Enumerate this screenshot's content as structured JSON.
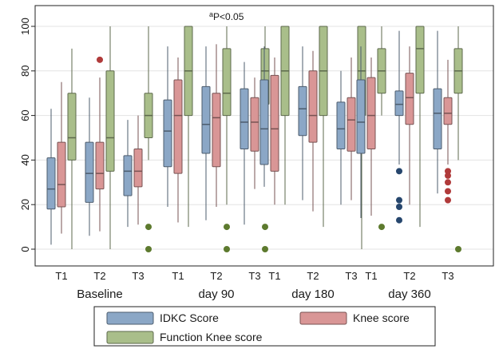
{
  "chart_data": {
    "type": "boxplot",
    "ylim": [
      0,
      100
    ],
    "yticks": [
      0,
      20,
      40,
      60,
      80,
      100
    ],
    "grid": true,
    "legend_position": "bottom",
    "annotation": {
      "sup": "a",
      "text": "P<0.05"
    },
    "colors": {
      "IDKC Score": "#8ba7c6",
      "Knee score": "#d99696",
      "Function Knee score": "#a9be8a"
    },
    "groups": [
      {
        "label": "Baseline",
        "timepoints": [
          {
            "label": "T1",
            "boxes": [
              {
                "series": "IDKC Score",
                "whisker_low": 2,
                "q1": 18,
                "median": 27,
                "q3": 41,
                "whisker_high": 63,
                "outliers": []
              },
              {
                "series": "Knee score",
                "whisker_low": 7,
                "q1": 19,
                "median": 29,
                "q3": 48,
                "whisker_high": 75,
                "outliers": []
              },
              {
                "series": "Function Knee score",
                "whisker_low": 0,
                "q1": 40,
                "median": 50,
                "q3": 70,
                "whisker_high": 90,
                "outliers": []
              }
            ]
          },
          {
            "label": "T2",
            "boxes": [
              {
                "series": "IDKC Score",
                "whisker_low": 6,
                "q1": 21,
                "median": 34,
                "q3": 48,
                "whisker_high": 68,
                "outliers": []
              },
              {
                "series": "Knee score",
                "whisker_low": 8,
                "q1": 27,
                "median": 34,
                "q3": 48,
                "whisker_high": 77,
                "outliers": [
                  85
                ]
              },
              {
                "series": "Function Knee score",
                "whisker_low": 0,
                "q1": 35,
                "median": 50,
                "q3": 80,
                "whisker_high": 100,
                "outliers": []
              }
            ]
          },
          {
            "label": "T3",
            "boxes": [
              {
                "series": "IDKC Score",
                "whisker_low": 10,
                "q1": 24,
                "median": 35,
                "q3": 42,
                "whisker_high": 58,
                "outliers": []
              },
              {
                "series": "Knee score",
                "whisker_low": 11,
                "q1": 28,
                "median": 35,
                "q3": 45,
                "whisker_high": 60,
                "outliers": []
              },
              {
                "series": "Function Knee score",
                "whisker_low": 40,
                "q1": 50,
                "median": 60,
                "q3": 70,
                "whisker_high": 100,
                "outliers": [
                  10,
                  0
                ]
              }
            ]
          }
        ]
      },
      {
        "label": "day 90",
        "timepoints": [
          {
            "label": "T1",
            "boxes": [
              {
                "series": "IDKC Score",
                "whisker_low": 19,
                "q1": 37,
                "median": 53,
                "q3": 67,
                "whisker_high": 91,
                "outliers": []
              },
              {
                "series": "Knee score",
                "whisker_low": 12,
                "q1": 34,
                "median": 60,
                "q3": 76,
                "whisker_high": 86,
                "outliers": []
              },
              {
                "series": "Function Knee score",
                "whisker_low": 10,
                "q1": 60,
                "median": 80,
                "q3": 100,
                "whisker_high": 100,
                "outliers": []
              }
            ]
          },
          {
            "label": "T2",
            "boxes": [
              {
                "series": "IDKC Score",
                "whisker_low": 13,
                "q1": 43,
                "median": 56,
                "q3": 73,
                "whisker_high": 91,
                "outliers": []
              },
              {
                "series": "Knee score",
                "whisker_low": 19,
                "q1": 37,
                "median": 59,
                "q3": 70,
                "whisker_high": 92,
                "outliers": []
              },
              {
                "series": "Function Knee score",
                "whisker_low": 20,
                "q1": 60,
                "median": 70,
                "q3": 90,
                "whisker_high": 100,
                "outliers": [
                  10,
                  0
                ]
              }
            ]
          },
          {
            "label": "T3",
            "boxes": [
              {
                "series": "IDKC Score",
                "whisker_low": 11,
                "q1": 45,
                "median": 57,
                "q3": 72,
                "whisker_high": 84,
                "outliers": []
              },
              {
                "series": "Knee score",
                "whisker_low": 27,
                "q1": 44,
                "median": 57,
                "q3": 68,
                "whisker_high": 77,
                "outliers": []
              },
              {
                "series": "Function Knee score",
                "whisker_low": 40,
                "q1": 65,
                "median": 80,
                "q3": 90,
                "whisker_high": 100,
                "outliers": [
                  10,
                  0
                ]
              }
            ]
          }
        ]
      },
      {
        "label": "day 180",
        "timepoints": [
          {
            "label": "T1",
            "boxes": [
              {
                "series": "IDKC Score",
                "whisker_low": 28,
                "q1": 38,
                "median": 54,
                "q3": 76,
                "whisker_high": 91,
                "outliers": []
              },
              {
                "series": "Knee score",
                "whisker_low": 20,
                "q1": 35,
                "median": 54,
                "q3": 78,
                "whisker_high": 86,
                "outliers": []
              },
              {
                "series": "Function Knee score",
                "whisker_low": 20,
                "q1": 60,
                "median": 80,
                "q3": 100,
                "whisker_high": 100,
                "outliers": []
              }
            ]
          },
          {
            "label": "T2",
            "boxes": [
              {
                "series": "IDKC Score",
                "whisker_low": 22,
                "q1": 51,
                "median": 63,
                "q3": 73,
                "whisker_high": 91,
                "outliers": []
              },
              {
                "series": "Knee score",
                "whisker_low": 17,
                "q1": 48,
                "median": 60,
                "q3": 80,
                "whisker_high": 89,
                "outliers": []
              },
              {
                "series": "Function Knee score",
                "whisker_low": 10,
                "q1": 60,
                "median": 80,
                "q3": 100,
                "whisker_high": 100,
                "outliers": []
              }
            ]
          },
          {
            "label": "T3",
            "boxes": [
              {
                "series": "IDKC Score",
                "whisker_low": 20,
                "q1": 45,
                "median": 54,
                "q3": 66,
                "whisker_high": 80,
                "outliers": []
              },
              {
                "series": "Knee score",
                "whisker_low": 22,
                "q1": 44,
                "median": 58,
                "q3": 68,
                "whisker_high": 86,
                "outliers": []
              },
              {
                "series": "Function Knee score",
                "whisker_low": 0,
                "q1": 60,
                "median": 80,
                "q3": 100,
                "whisker_high": 100,
                "outliers": []
              }
            ]
          }
        ]
      },
      {
        "label": "day 360",
        "timepoints": [
          {
            "label": "T1",
            "boxes": [
              {
                "series": "IDKC Score",
                "whisker_low": 14,
                "q1": 43,
                "median": 57,
                "q3": 76,
                "whisker_high": 91,
                "outliers": []
              },
              {
                "series": "Knee score",
                "whisker_low": 15,
                "q1": 45,
                "median": 60,
                "q3": 77,
                "whisker_high": 86,
                "outliers": []
              },
              {
                "series": "Function Knee score",
                "whisker_low": 60,
                "q1": 70,
                "median": 80,
                "q3": 90,
                "whisker_high": 100,
                "outliers": [
                  10
                ]
              }
            ]
          },
          {
            "label": "T2",
            "boxes": [
              {
                "series": "IDKC Score",
                "whisker_low": 38,
                "q1": 60,
                "median": 65,
                "q3": 71,
                "whisker_high": 98,
                "outliers": [
                  35,
                  22,
                  19,
                  13
                ]
              },
              {
                "series": "Knee score",
                "whisker_low": 20,
                "q1": 56,
                "median": 68,
                "q3": 79,
                "whisker_high": 91,
                "outliers": []
              },
              {
                "series": "Function Knee score",
                "whisker_low": 10,
                "q1": 70,
                "median": 90,
                "q3": 100,
                "whisker_high": 100,
                "outliers": []
              }
            ]
          },
          {
            "label": "T3",
            "boxes": [
              {
                "series": "IDKC Score",
                "whisker_low": 25,
                "q1": 45,
                "median": 61,
                "q3": 72,
                "whisker_high": 98,
                "outliers": []
              },
              {
                "series": "Knee score",
                "whisker_low": 38,
                "q1": 56,
                "median": 61,
                "q3": 68,
                "whisker_high": 85,
                "outliers": [
                  35,
                  33,
                  30,
                  26,
                  22
                ]
              },
              {
                "series": "Function Knee score",
                "whisker_low": 40,
                "q1": 70,
                "median": 80,
                "q3": 90,
                "whisker_high": 100,
                "outliers": [
                  0
                ]
              }
            ]
          }
        ]
      }
    ],
    "legend": [
      "IDKC Score",
      "Knee score",
      "Function Knee score"
    ]
  }
}
